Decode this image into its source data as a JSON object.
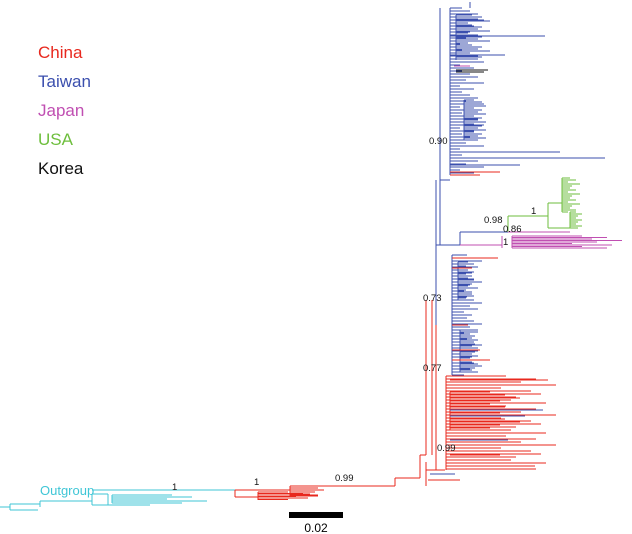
{
  "legend": {
    "items": [
      {
        "label": "China",
        "color": "#e8281e"
      },
      {
        "label": "Taiwan",
        "color": "#3b4fae"
      },
      {
        "label": "Japan",
        "color": "#c04fb2"
      },
      {
        "label": "USA",
        "color": "#6dbe3c"
      },
      {
        "label": "Korea",
        "color": "#111111"
      }
    ]
  },
  "outgroup": {
    "label": "Outgroup",
    "color": "#3fc6d6"
  },
  "support_values": [
    "1",
    "1",
    "0.99",
    "0.73",
    "0.77",
    "0.99",
    "0.90",
    "0.98",
    "0.86",
    "1",
    "1"
  ],
  "scale_bar": {
    "label": "0.02"
  }
}
